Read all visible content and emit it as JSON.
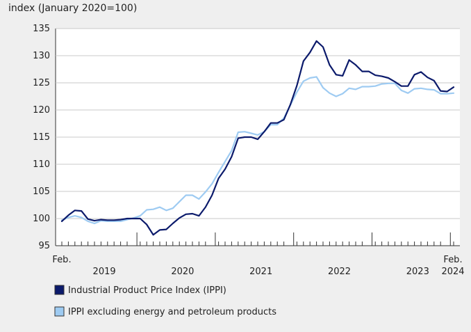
{
  "chart_data": {
    "type": "line",
    "ylabel": "index (January 2020=100)",
    "ylim": [
      95,
      135
    ],
    "yticks": [
      95,
      100,
      105,
      110,
      115,
      120,
      125,
      130,
      135
    ],
    "x_start_label": "Feb.",
    "x_end_label": "Feb.",
    "x_end_year": "2024",
    "year_labels": [
      {
        "label": "2019",
        "center_month": 6.5
      },
      {
        "label": "2020",
        "center_month": 18.5
      },
      {
        "label": "2021",
        "center_month": 30.5
      },
      {
        "label": "2022",
        "center_month": 42.5
      },
      {
        "label": "2023",
        "center_month": 54.5
      }
    ],
    "year_boundaries": [
      11,
      23,
      35,
      47,
      59
    ],
    "month_count": 61,
    "series": [
      {
        "name": "Industrial Product Price Index (IPPI)",
        "color": "#0b1a6b",
        "values": [
          99.5,
          100.6,
          101.5,
          101.4,
          99.9,
          99.6,
          99.8,
          99.7,
          99.7,
          99.8,
          100.0,
          100.0,
          100.0,
          98.9,
          97.0,
          97.9,
          98.0,
          99.1,
          100.1,
          100.8,
          100.9,
          100.5,
          102.1,
          104.3,
          107.4,
          109.1,
          111.4,
          114.8,
          115.0,
          115.0,
          114.6,
          116.0,
          117.6,
          117.6,
          118.2,
          121.0,
          124.5,
          129.0,
          130.6,
          132.7,
          131.6,
          128.3,
          126.5,
          126.3,
          129.2,
          128.3,
          127.1,
          127.1,
          126.4,
          126.2,
          125.9,
          125.2,
          124.4,
          124.4,
          126.5,
          127.0,
          126.0,
          125.4,
          123.5,
          123.4,
          124.2
        ]
      },
      {
        "name": "IPPI excluding energy and petroleum products",
        "color": "#9ecbf2",
        "values": [
          99.7,
          100.2,
          100.5,
          100.2,
          99.5,
          99.1,
          99.6,
          99.5,
          99.5,
          99.5,
          99.8,
          100.1,
          100.5,
          101.6,
          101.7,
          102.1,
          101.5,
          101.9,
          103.1,
          104.3,
          104.3,
          103.6,
          104.9,
          106.4,
          108.5,
          110.5,
          112.5,
          115.9,
          116.0,
          115.7,
          115.4,
          116.0,
          117.3,
          117.3,
          118.5,
          120.9,
          123.3,
          125.3,
          125.9,
          126.1,
          124.1,
          123.1,
          122.5,
          123.0,
          124.0,
          123.8,
          124.3,
          124.3,
          124.4,
          124.8,
          124.9,
          124.9,
          123.6,
          123.1,
          123.9,
          124.0,
          123.8,
          123.7,
          123.0,
          123.0,
          123.1
        ]
      }
    ]
  }
}
